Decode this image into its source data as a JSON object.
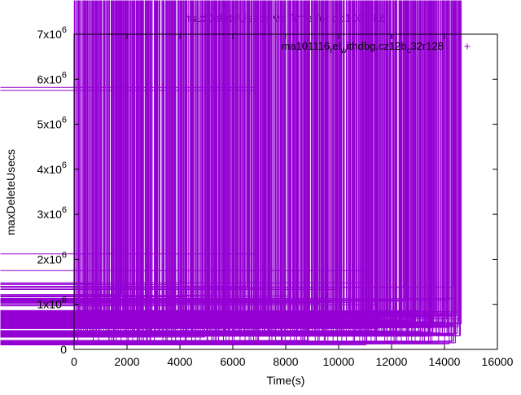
{
  "chart_data": {
    "type": "scatter",
    "title": "maxDeleteUsecs vs Time for qp1000.L6",
    "xlabel": "Time(s)",
    "ylabel": "maxDeleteUsecs",
    "xlim": [
      0,
      16000
    ],
    "ylim": [
      0,
      7000000
    ],
    "x_ticks": [
      0,
      2000,
      4000,
      6000,
      8000,
      10000,
      12000,
      14000,
      16000
    ],
    "x_tick_labels": [
      "0",
      "2000",
      "4000",
      "6000",
      "8000",
      "10000",
      "12000",
      "14000",
      "16000"
    ],
    "y_ticks": [
      0,
      1000000,
      2000000,
      3000000,
      4000000,
      5000000,
      6000000,
      7000000
    ],
    "y_tick_labels": [
      {
        "base": "0",
        "exp": ""
      },
      {
        "base": "1x10",
        "exp": "6"
      },
      {
        "base": "2x10",
        "exp": "6"
      },
      {
        "base": "3x10",
        "exp": "6"
      },
      {
        "base": "4x10",
        "exp": "6"
      },
      {
        "base": "5x10",
        "exp": "6"
      },
      {
        "base": "6x10",
        "exp": "6"
      },
      {
        "base": "7x10",
        "exp": "6"
      }
    ],
    "grid": false,
    "legend_position": "top-right",
    "legend": {
      "parts": [
        {
          "text": "ma101116",
          "shift": "none"
        },
        {
          "text": "r",
          "shift": "sub"
        },
        {
          "text": "el",
          "shift": "none"
        },
        {
          "text": "w",
          "shift": "sub"
        },
        {
          "text": "ithdbg.cz12b",
          "shift": "none"
        },
        {
          "text": "c",
          "shift": "sub"
        },
        {
          "text": "32r128",
          "shift": "none"
        }
      ]
    },
    "series": [
      {
        "color": "#9400d3",
        "marker": "plus",
        "x_range": [
          0,
          14600
        ],
        "dense_bands": [
          {
            "center": 350000,
            "spread": 90000,
            "density": 1.0
          },
          {
            "center": 550000,
            "spread": 110000,
            "density": 1.0
          },
          {
            "center": 750000,
            "spread": 140000,
            "density": 0.8
          },
          {
            "center": 150000,
            "spread": 60000,
            "density": 0.5
          }
        ],
        "outliers": [
          {
            "x": 6850,
            "y": 5820000
          },
          {
            "x": 6850,
            "y": 5750000
          },
          {
            "x": 6850,
            "y": 2120000
          },
          {
            "x": 11050,
            "y": 1750000
          },
          {
            "x": 11100,
            "y": 1480000
          },
          {
            "x": 3950,
            "y": 1440000
          },
          {
            "x": 6550,
            "y": 1400000
          },
          {
            "x": 700,
            "y": 1460000
          },
          {
            "x": 150,
            "y": 1400000
          },
          {
            "x": 1800,
            "y": 1220000
          },
          {
            "x": 14350,
            "y": 1380000
          },
          {
            "x": 12450,
            "y": 1380000
          },
          {
            "x": 7200,
            "y": 1340000
          },
          {
            "x": 9950,
            "y": 1330000
          }
        ]
      }
    ]
  }
}
